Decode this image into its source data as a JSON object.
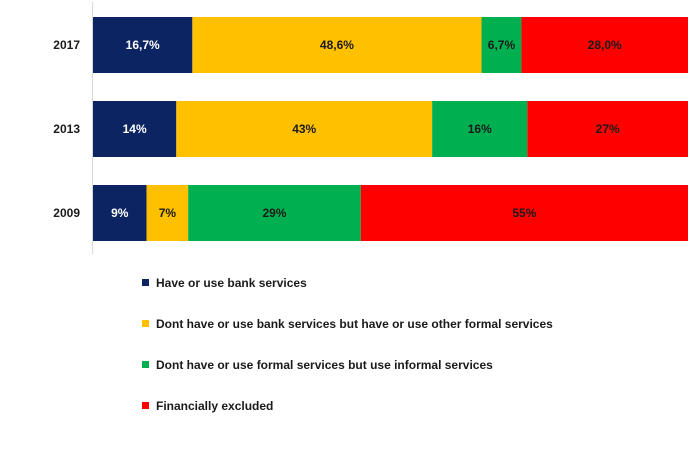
{
  "chart_data": {
    "type": "bar",
    "orientation": "horizontal",
    "stacked": "percent",
    "categories": [
      "2017",
      "2013",
      "2009"
    ],
    "series": [
      {
        "name": "Have or use bank services",
        "color": "#0c2461",
        "values": [
          16.7,
          14,
          9
        ],
        "labels": [
          "16,7%",
          "14%",
          "9%"
        ]
      },
      {
        "name": "Dont have or use bank services but have or use other formal services",
        "color": "#ffc000",
        "values": [
          48.6,
          43,
          7
        ],
        "labels": [
          "48,6%",
          "43%",
          "7%"
        ]
      },
      {
        "name": "Dont have or use formal services but use informal services",
        "color": "#00b050",
        "values": [
          6.7,
          16,
          29
        ],
        "labels": [
          "6,7%",
          "16%",
          "29%"
        ]
      },
      {
        "name": "Financially excluded",
        "color": "#ff0000",
        "values": [
          28.0,
          27,
          55
        ],
        "labels": [
          "28,0%",
          "27%",
          "55%"
        ]
      }
    ],
    "xlim": [
      0,
      100
    ],
    "grid": false,
    "legend_position": "bottom-left"
  }
}
